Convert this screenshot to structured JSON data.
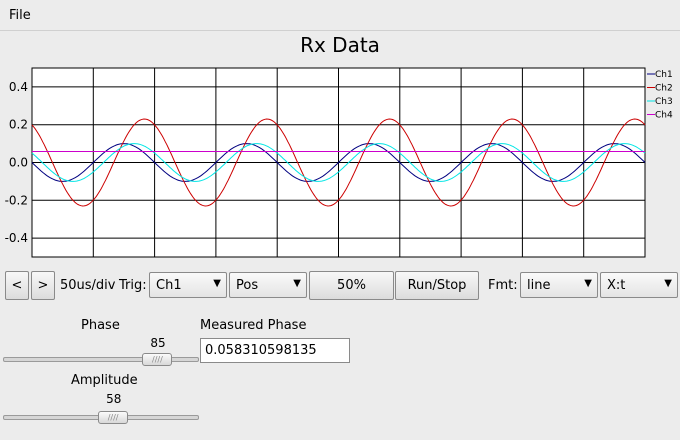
{
  "menubar": {
    "file": "File"
  },
  "chart_data": {
    "type": "line",
    "title": "Rx Data",
    "ylim": [
      -0.5,
      0.5
    ],
    "yticks": [
      "0.4",
      "0.2",
      "0.0",
      "-0.2",
      "-0.4"
    ],
    "grid": true,
    "legend_placement": "right",
    "series": [
      {
        "name": "Ch1",
        "color": "#000080",
        "amplitude": 0.1,
        "phase_deg": 180,
        "offset": 0.0,
        "cycles": 5
      },
      {
        "name": "Ch2",
        "color": "#cc0000",
        "amplitude": 0.23,
        "phase_deg": 120,
        "offset": 0.0,
        "cycles": 5
      },
      {
        "name": "Ch3",
        "color": "#00e5e5",
        "amplitude": 0.1,
        "phase_deg": 150,
        "offset": 0.0,
        "cycles": 5
      },
      {
        "name": "Ch4",
        "color": "#cc00cc",
        "amplitude": 0.0,
        "phase_deg": 0,
        "offset": 0.058,
        "cycles": 5
      }
    ]
  },
  "toolbar": {
    "prev_label": "<",
    "next_label": ">",
    "timebase": "50us/div",
    "trig_label": "Trig:",
    "trig_channel": "Ch1",
    "trig_edge": "Pos",
    "trig_level": "50%",
    "run_stop": "Run/Stop",
    "fmt_label": "Fmt:",
    "fmt_style": "line",
    "fmt_mode": "X:t"
  },
  "controls": {
    "phase_label": "Phase",
    "phase_value": "85",
    "phase_fraction": 0.85,
    "amplitude_label": "Amplitude",
    "amplitude_value": "58",
    "amplitude_fraction": 0.58,
    "measured_label": "Measured Phase",
    "measured_value": "0.058310598135"
  },
  "icons": {
    "dropdown": "chevron-down-icon",
    "slider_grip": "grip-icon"
  }
}
